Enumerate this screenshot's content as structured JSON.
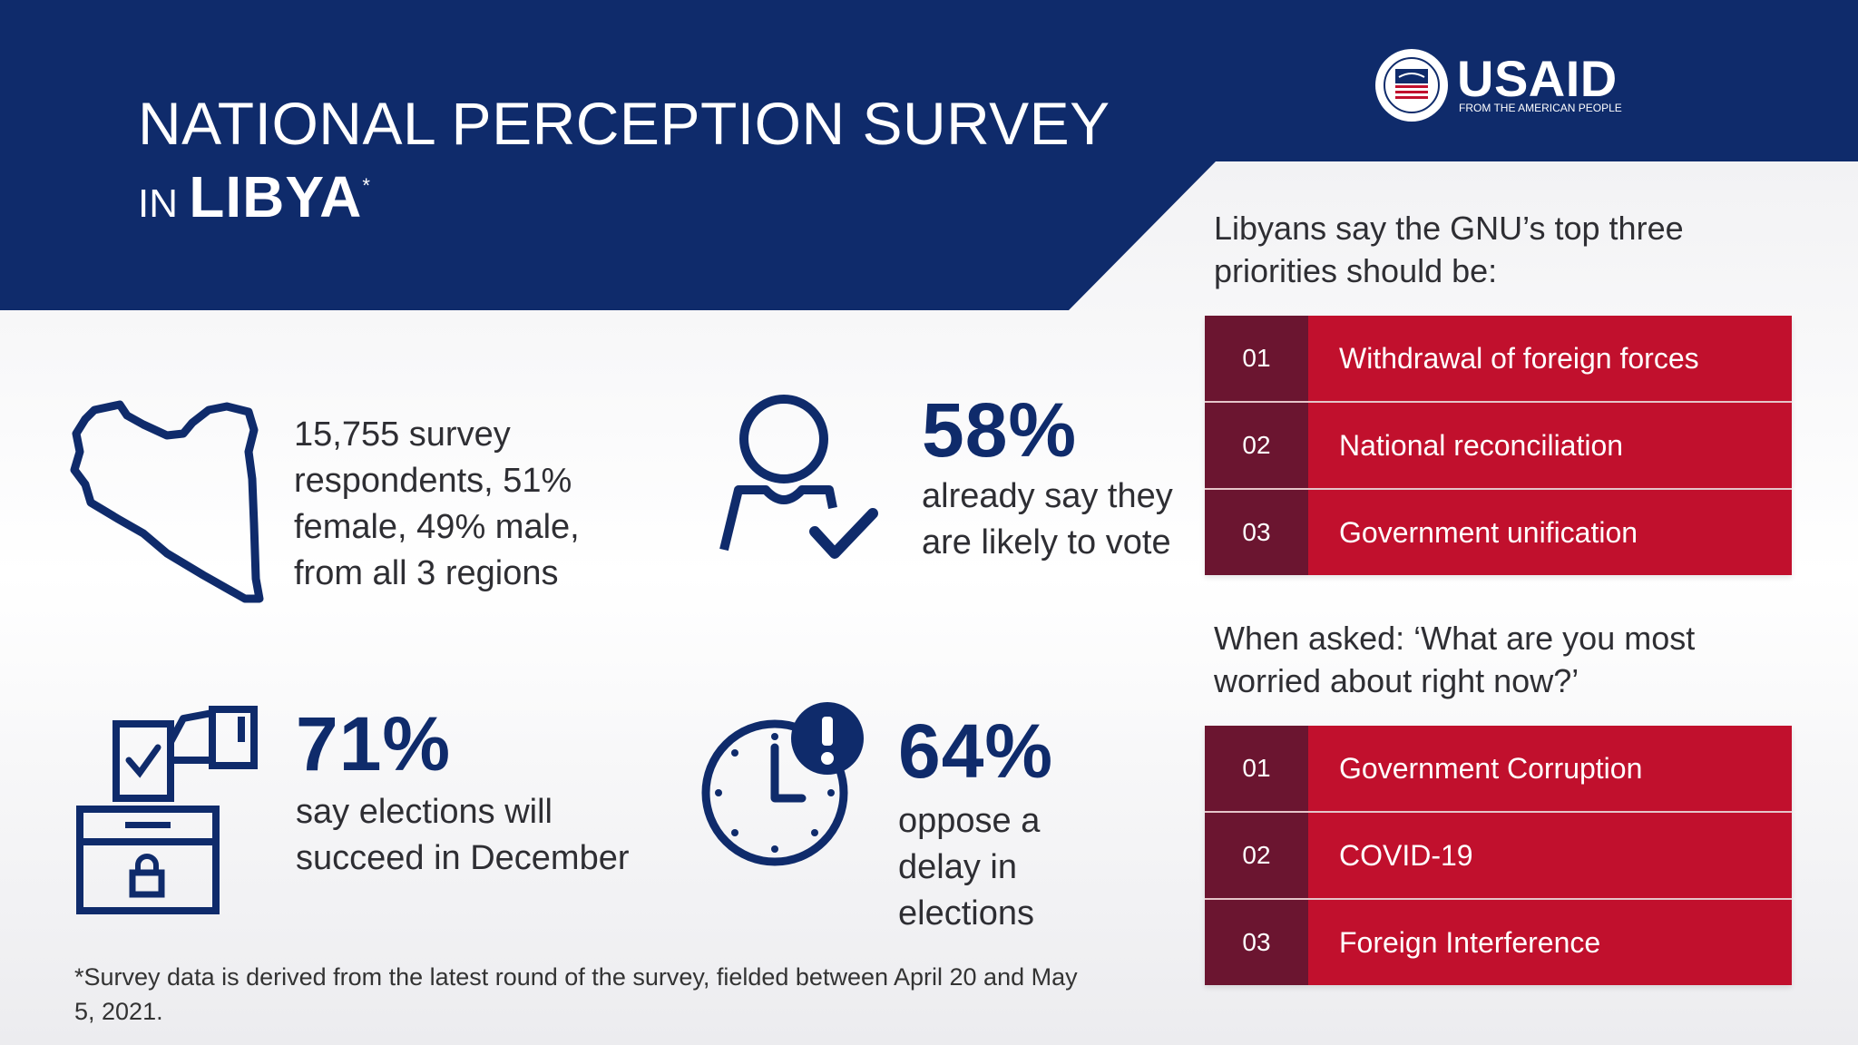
{
  "colors": {
    "navy": "#0f2b6b",
    "red": "#c1102d",
    "maroon": "#6b1530",
    "text": "#2e2e33"
  },
  "header": {
    "title_line1": "NATIONAL PERCEPTION SURVEY",
    "title_prefix": "IN",
    "title_country": "LIBYA",
    "title_mark": "*"
  },
  "logo": {
    "word": "USAID",
    "tagline": "FROM THE AMERICAN PEOPLE",
    "seal_icon": "usaid-seal-icon"
  },
  "stats": {
    "respondents": {
      "icon": "libya-map-icon",
      "text": "15,755 survey respondents, 51% female, 49% male, from all 3 regions"
    },
    "vote": {
      "icon": "person-check-icon",
      "value": "58%",
      "text": "already say they are likely to vote"
    },
    "elections": {
      "icon": "ballot-box-icon",
      "value": "71%",
      "text": "say elections will succeed in December"
    },
    "delay": {
      "icon": "clock-alert-icon",
      "value": "64%",
      "text": "oppose a delay in elections"
    }
  },
  "priorities": {
    "question": "Libyans say the GNU’s top three priorities should be:",
    "items": [
      {
        "num": "01",
        "label": "Withdrawal of foreign forces"
      },
      {
        "num": "02",
        "label": "National reconciliation"
      },
      {
        "num": "03",
        "label": "Government unification"
      }
    ]
  },
  "worries": {
    "question": "When asked: ‘What are you most worried about right now?’",
    "items": [
      {
        "num": "01",
        "label": "Government Corruption"
      },
      {
        "num": "02",
        "label": "COVID-19"
      },
      {
        "num": "03",
        "label": "Foreign Interference"
      }
    ]
  },
  "footnote": "*Survey data is derived from the latest round of the survey, fielded between April 20 and May 5, 2021."
}
